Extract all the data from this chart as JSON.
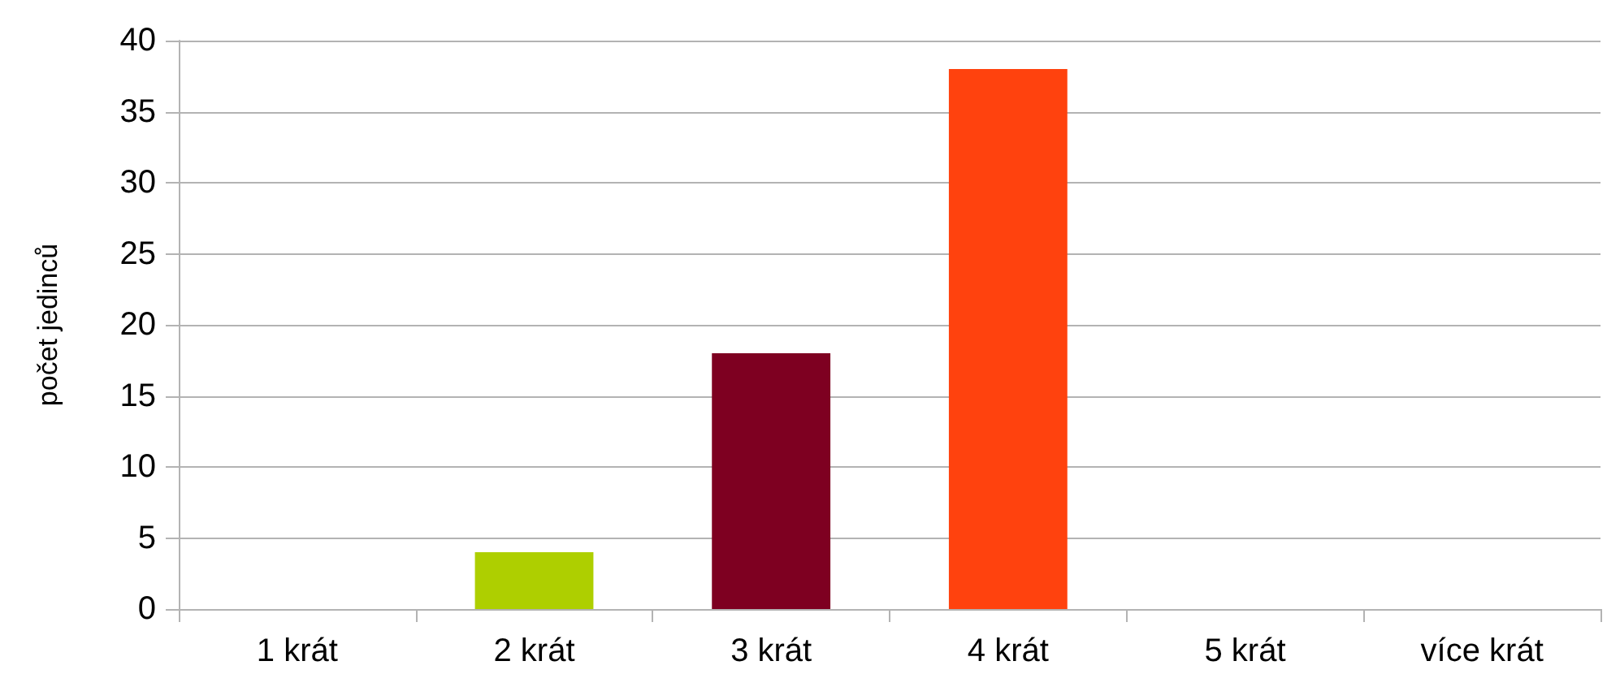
{
  "chart_data": {
    "type": "bar",
    "ylabel": "počet jedinců",
    "categories": [
      "1 krát",
      "2 krát",
      "3 krát",
      "4 krát",
      "5 krát",
      "více krát"
    ],
    "values": [
      0,
      4,
      18,
      38,
      0,
      0
    ],
    "colors": [
      "#004586",
      "#aecf00",
      "#7e0021",
      "#ff420e",
      "#ffd320",
      "#579d1c"
    ],
    "ylim": [
      0,
      40
    ],
    "yticks": [
      0,
      5,
      10,
      15,
      20,
      25,
      30,
      35,
      40
    ],
    "grid": "y"
  }
}
